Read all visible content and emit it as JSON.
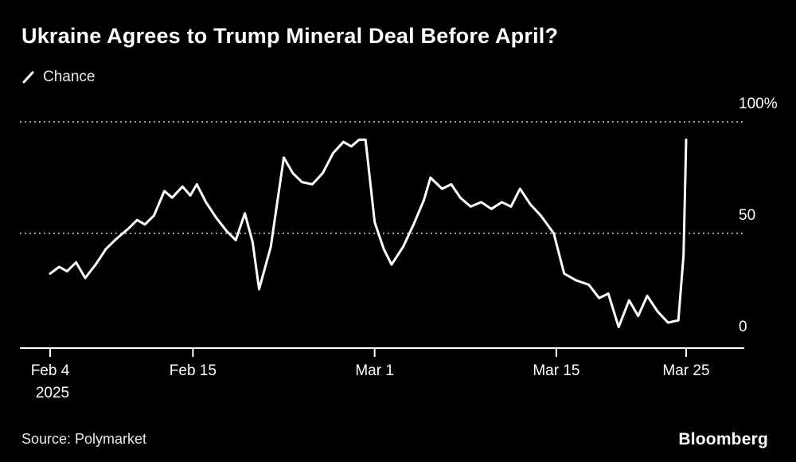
{
  "title": "Ukraine Agrees to Trump Mineral Deal Before April?",
  "legend": {
    "label": "Chance"
  },
  "source": "Source: Polymarket",
  "brand": "Bloomberg",
  "colors": {
    "background": "#000000",
    "line": "#ffffff",
    "text": "#ffffff",
    "grid": "#cccccc",
    "axis": "#ffffff"
  },
  "chart_data": {
    "type": "line",
    "title": "Ukraine Agrees to Trump Mineral Deal Before April?",
    "series_name": "Chance",
    "x_unit": "days since Feb 4, 2025",
    "ylim": [
      0,
      100
    ],
    "xlim_days": [
      0,
      49
    ],
    "grid": "dotted horizontal at 50 and 100",
    "legend_position": "top-left",
    "y_ticks": [
      {
        "value": 100,
        "label": "100%"
      },
      {
        "value": 50,
        "label": "50"
      },
      {
        "value": 0,
        "label": "0"
      }
    ],
    "x_ticks": [
      {
        "day": 0,
        "label": "Feb 4",
        "sublabel": "2025"
      },
      {
        "day": 11,
        "label": "Feb 15",
        "sublabel": ""
      },
      {
        "day": 25,
        "label": "Mar 1",
        "sublabel": ""
      },
      {
        "day": 39,
        "label": "Mar 15",
        "sublabel": ""
      },
      {
        "day": 49,
        "label": "Mar 25",
        "sublabel": ""
      }
    ],
    "points": [
      [
        0,
        32
      ],
      [
        0.7,
        35
      ],
      [
        1.3,
        33
      ],
      [
        2,
        37
      ],
      [
        2.7,
        30
      ],
      [
        3.5,
        36
      ],
      [
        4.3,
        43
      ],
      [
        5,
        47
      ],
      [
        6,
        52
      ],
      [
        6.7,
        56
      ],
      [
        7.3,
        54
      ],
      [
        8,
        58
      ],
      [
        8.8,
        69
      ],
      [
        9.4,
        66
      ],
      [
        10.2,
        71
      ],
      [
        10.8,
        67
      ],
      [
        11.3,
        72
      ],
      [
        12,
        64
      ],
      [
        12.8,
        57
      ],
      [
        13.6,
        51
      ],
      [
        14.3,
        47
      ],
      [
        15,
        59
      ],
      [
        15.6,
        46
      ],
      [
        16.1,
        25
      ],
      [
        17,
        44
      ],
      [
        18,
        84
      ],
      [
        18.7,
        77
      ],
      [
        19.4,
        73
      ],
      [
        20.2,
        72
      ],
      [
        21,
        77
      ],
      [
        21.8,
        86
      ],
      [
        22.6,
        91
      ],
      [
        23.2,
        89
      ],
      [
        23.8,
        92
      ],
      [
        24.3,
        92
      ],
      [
        25,
        55
      ],
      [
        25.7,
        43
      ],
      [
        26.3,
        36
      ],
      [
        27.2,
        44
      ],
      [
        28,
        54
      ],
      [
        28.8,
        65
      ],
      [
        29.3,
        75
      ],
      [
        30.2,
        70
      ],
      [
        30.9,
        72
      ],
      [
        31.6,
        66
      ],
      [
        32.4,
        62
      ],
      [
        33.2,
        64
      ],
      [
        34,
        61
      ],
      [
        34.8,
        64
      ],
      [
        35.5,
        62
      ],
      [
        36.2,
        70
      ],
      [
        37,
        63
      ],
      [
        37.8,
        58
      ],
      [
        38.8,
        50
      ],
      [
        39.6,
        32
      ],
      [
        40.5,
        29
      ],
      [
        41.5,
        27
      ],
      [
        42.3,
        21
      ],
      [
        43,
        23
      ],
      [
        43.8,
        8
      ],
      [
        44.6,
        20
      ],
      [
        45.3,
        13
      ],
      [
        46,
        22
      ],
      [
        46.8,
        15
      ],
      [
        47.6,
        10
      ],
      [
        48.4,
        11
      ],
      [
        48.8,
        40
      ],
      [
        49,
        92
      ]
    ]
  }
}
